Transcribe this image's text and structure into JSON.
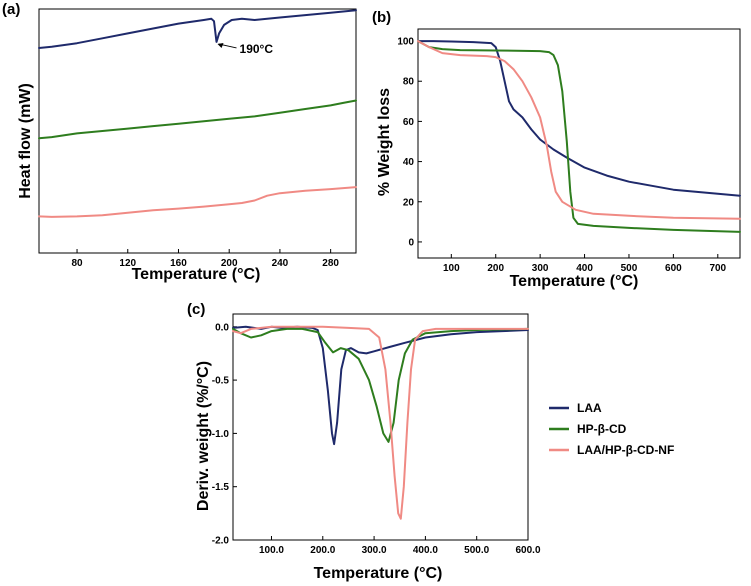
{
  "colors": {
    "LAA": "#1f2a6b",
    "HP-β-CD": "#2e7d1e",
    "LAA/HP-β-CD-NF": "#f08a84"
  },
  "chart_data": [
    {
      "panel": "(a)",
      "type": "line",
      "title": "",
      "xlabel": "Temperature (°C)",
      "ylabel": "Heat flow (mW)",
      "xlim": [
        50,
        300
      ],
      "ylim": [
        0,
        1
      ],
      "xticks": [
        80,
        120,
        160,
        200,
        240,
        280
      ],
      "yticks": [],
      "grid": false,
      "annotation": {
        "text": "190°C",
        "x": 190,
        "y": 0.865
      },
      "series": [
        {
          "key": "LAA",
          "points": [
            [
              50,
              0.84
            ],
            [
              60,
              0.845
            ],
            [
              80,
              0.86
            ],
            [
              100,
              0.88
            ],
            [
              120,
              0.9
            ],
            [
              140,
              0.92
            ],
            [
              160,
              0.94
            ],
            [
              180,
              0.955
            ],
            [
              186,
              0.96
            ],
            [
              188,
              0.95
            ],
            [
              190,
              0.865
            ],
            [
              192,
              0.9
            ],
            [
              196,
              0.935
            ],
            [
              202,
              0.955
            ],
            [
              210,
              0.96
            ],
            [
              220,
              0.955
            ],
            [
              240,
              0.965
            ],
            [
              260,
              0.975
            ],
            [
              280,
              0.985
            ],
            [
              300,
              0.995
            ]
          ]
        },
        {
          "key": "HP-β-CD",
          "points": [
            [
              50,
              0.47
            ],
            [
              60,
              0.475
            ],
            [
              80,
              0.49
            ],
            [
              100,
              0.5
            ],
            [
              120,
              0.51
            ],
            [
              140,
              0.52
            ],
            [
              160,
              0.53
            ],
            [
              180,
              0.54
            ],
            [
              200,
              0.55
            ],
            [
              220,
              0.56
            ],
            [
              240,
              0.575
            ],
            [
              260,
              0.59
            ],
            [
              280,
              0.605
            ],
            [
              290,
              0.615
            ],
            [
              300,
              0.625
            ]
          ]
        },
        {
          "key": "LAA/HP-β-CD-NF",
          "points": [
            [
              50,
              0.15
            ],
            [
              60,
              0.148
            ],
            [
              80,
              0.15
            ],
            [
              100,
              0.155
            ],
            [
              120,
              0.165
            ],
            [
              140,
              0.175
            ],
            [
              160,
              0.182
            ],
            [
              180,
              0.19
            ],
            [
              200,
              0.2
            ],
            [
              210,
              0.205
            ],
            [
              220,
              0.215
            ],
            [
              230,
              0.235
            ],
            [
              240,
              0.245
            ],
            [
              260,
              0.255
            ],
            [
              280,
              0.262
            ],
            [
              300,
              0.27
            ]
          ]
        }
      ]
    },
    {
      "panel": "(b)",
      "type": "line",
      "title": "",
      "xlabel": "Temperature (°C)",
      "ylabel": "% Weight loss",
      "xlim": [
        25,
        750
      ],
      "ylim": [
        -8,
        106
      ],
      "xticks": [
        100,
        200,
        300,
        400,
        500,
        600,
        700
      ],
      "yticks": [
        0,
        20,
        40,
        60,
        80,
        100
      ],
      "grid": false,
      "series": [
        {
          "key": "LAA",
          "points": [
            [
              25,
              100
            ],
            [
              60,
              100
            ],
            [
              100,
              99.8
            ],
            [
              150,
              99.5
            ],
            [
              190,
              99
            ],
            [
              200,
              97
            ],
            [
              210,
              90
            ],
            [
              220,
              80
            ],
            [
              230,
              70
            ],
            [
              240,
              66
            ],
            [
              260,
              62
            ],
            [
              280,
              56
            ],
            [
              300,
              51
            ],
            [
              330,
              46
            ],
            [
              360,
              42
            ],
            [
              400,
              37
            ],
            [
              450,
              33
            ],
            [
              500,
              30
            ],
            [
              550,
              28
            ],
            [
              600,
              26
            ],
            [
              650,
              25
            ],
            [
              700,
              24
            ],
            [
              750,
              23
            ]
          ]
        },
        {
          "key": "HP-β-CD",
          "points": [
            [
              25,
              100
            ],
            [
              50,
              97
            ],
            [
              80,
              96
            ],
            [
              120,
              95.5
            ],
            [
              200,
              95.3
            ],
            [
              300,
              95
            ],
            [
              320,
              94.5
            ],
            [
              330,
              93
            ],
            [
              340,
              88
            ],
            [
              350,
              75
            ],
            [
              360,
              50
            ],
            [
              368,
              25
            ],
            [
              375,
              12
            ],
            [
              385,
              9
            ],
            [
              420,
              8
            ],
            [
              500,
              7
            ],
            [
              600,
              6
            ],
            [
              750,
              5
            ]
          ]
        },
        {
          "key": "LAA/HP-β-CD-NF",
          "points": [
            [
              25,
              100
            ],
            [
              50,
              97
            ],
            [
              80,
              94
            ],
            [
              120,
              93
            ],
            [
              180,
              92.5
            ],
            [
              200,
              92
            ],
            [
              220,
              90
            ],
            [
              240,
              86
            ],
            [
              260,
              80
            ],
            [
              280,
              72
            ],
            [
              300,
              62
            ],
            [
              315,
              48
            ],
            [
              325,
              35
            ],
            [
              335,
              25
            ],
            [
              350,
              20
            ],
            [
              380,
              16
            ],
            [
              420,
              14
            ],
            [
              500,
              13
            ],
            [
              600,
              12
            ],
            [
              750,
              11.5
            ]
          ]
        }
      ]
    },
    {
      "panel": "(c)",
      "type": "line",
      "title": "",
      "xlabel": "Temperature (°C)",
      "ylabel": "Deriv. weight (%/°C)",
      "xlim": [
        25,
        600
      ],
      "ylim": [
        -2.0,
        0.12
      ],
      "xticks": [
        100,
        200,
        300,
        400,
        500,
        600
      ],
      "yticks": [
        0.0,
        -0.5,
        -1.0,
        -1.5,
        -2.0
      ],
      "grid": false,
      "legend": {
        "position": "right",
        "entries": [
          "LAA",
          "HP-β-CD",
          "LAA/HP-β-CD-NF"
        ]
      },
      "series": [
        {
          "key": "LAA",
          "points": [
            [
              25,
              -0.01
            ],
            [
              50,
              0.0
            ],
            [
              80,
              -0.02
            ],
            [
              100,
              0.0
            ],
            [
              120,
              -0.01
            ],
            [
              150,
              0.0
            ],
            [
              180,
              -0.01
            ],
            [
              190,
              -0.03
            ],
            [
              200,
              -0.2
            ],
            [
              210,
              -0.6
            ],
            [
              218,
              -1.0
            ],
            [
              222,
              -1.1
            ],
            [
              228,
              -0.9
            ],
            [
              236,
              -0.4
            ],
            [
              245,
              -0.22
            ],
            [
              255,
              -0.2
            ],
            [
              270,
              -0.24
            ],
            [
              285,
              -0.25
            ],
            [
              300,
              -0.23
            ],
            [
              330,
              -0.19
            ],
            [
              360,
              -0.15
            ],
            [
              400,
              -0.1
            ],
            [
              450,
              -0.07
            ],
            [
              500,
              -0.05
            ],
            [
              550,
              -0.04
            ],
            [
              600,
              -0.03
            ]
          ]
        },
        {
          "key": "HP-β-CD",
          "points": [
            [
              25,
              -0.02
            ],
            [
              40,
              -0.06
            ],
            [
              60,
              -0.1
            ],
            [
              80,
              -0.08
            ],
            [
              100,
              -0.04
            ],
            [
              130,
              -0.02
            ],
            [
              160,
              -0.02
            ],
            [
              190,
              -0.05
            ],
            [
              205,
              -0.15
            ],
            [
              220,
              -0.24
            ],
            [
              235,
              -0.2
            ],
            [
              250,
              -0.22
            ],
            [
              270,
              -0.3
            ],
            [
              290,
              -0.5
            ],
            [
              305,
              -0.75
            ],
            [
              318,
              -1.0
            ],
            [
              328,
              -1.08
            ],
            [
              338,
              -0.9
            ],
            [
              348,
              -0.5
            ],
            [
              360,
              -0.25
            ],
            [
              375,
              -0.12
            ],
            [
              400,
              -0.06
            ],
            [
              450,
              -0.04
            ],
            [
              500,
              -0.03
            ],
            [
              600,
              -0.02
            ]
          ]
        },
        {
          "key": "LAA/HP-β-CD-NF",
          "points": [
            [
              25,
              -0.04
            ],
            [
              40,
              -0.06
            ],
            [
              60,
              -0.02
            ],
            [
              100,
              0.0
            ],
            [
              200,
              0.0
            ],
            [
              250,
              -0.01
            ],
            [
              290,
              -0.02
            ],
            [
              310,
              -0.1
            ],
            [
              322,
              -0.4
            ],
            [
              332,
              -0.9
            ],
            [
              340,
              -1.4
            ],
            [
              347,
              -1.75
            ],
            [
              352,
              -1.8
            ],
            [
              358,
              -1.5
            ],
            [
              365,
              -0.9
            ],
            [
              372,
              -0.4
            ],
            [
              380,
              -0.12
            ],
            [
              395,
              -0.04
            ],
            [
              420,
              -0.02
            ],
            [
              500,
              -0.02
            ],
            [
              600,
              -0.02
            ]
          ]
        }
      ]
    }
  ]
}
